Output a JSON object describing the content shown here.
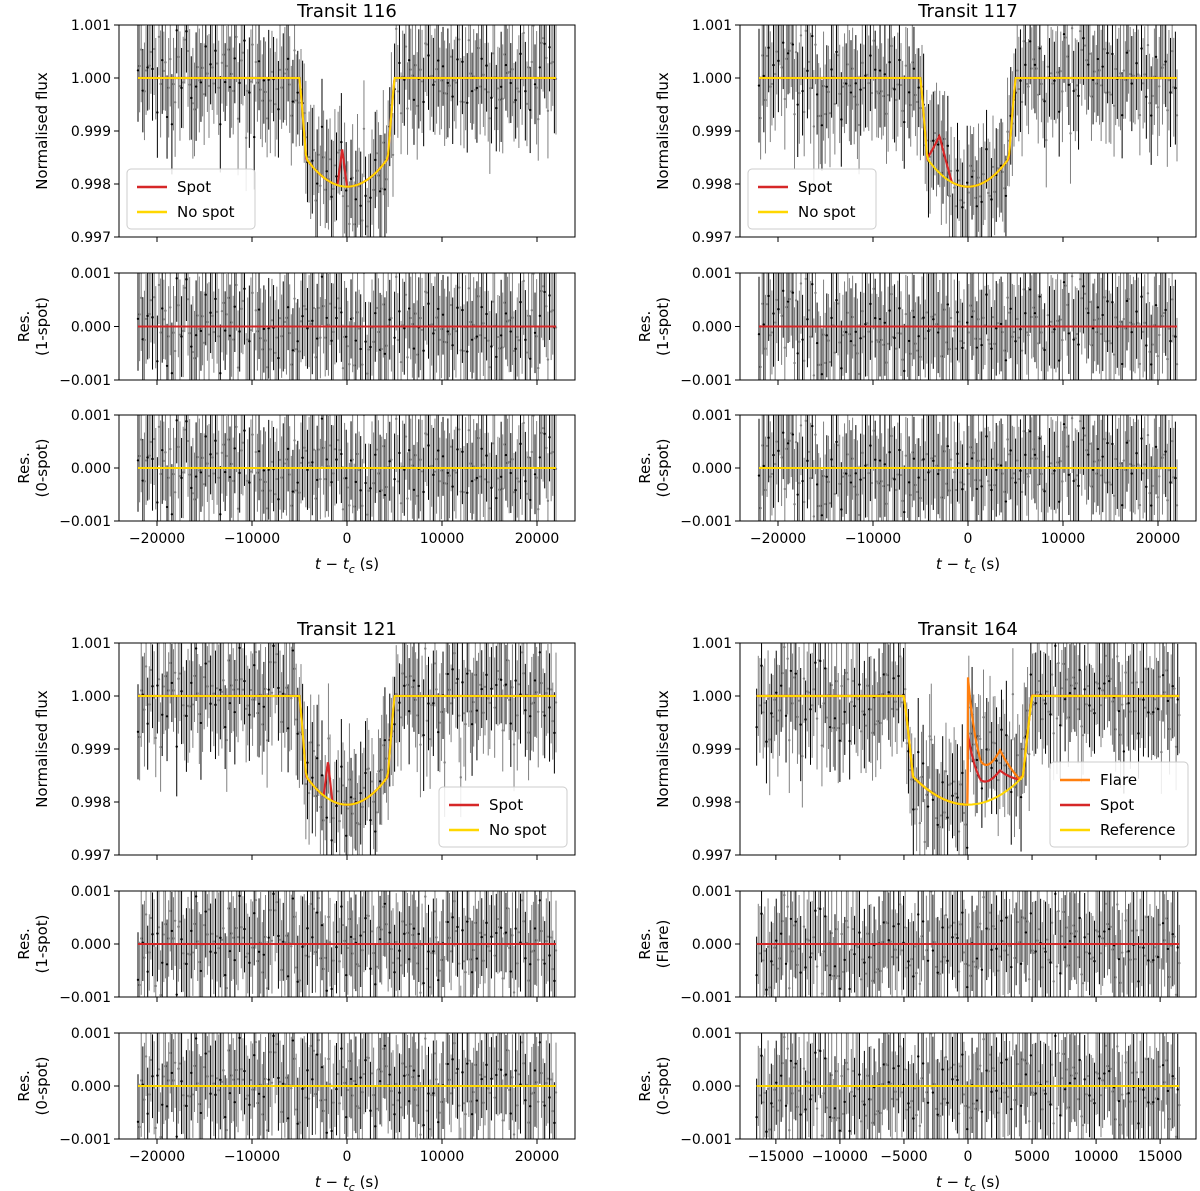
{
  "chart_data": [
    {
      "type": "line",
      "title": "Transit 116",
      "xlabel": "t − t",
      "xlabel_sub": "c",
      "xlabel_unit": " (s)",
      "xlim": [
        -24000,
        24000
      ],
      "xticks": [
        -20000,
        -10000,
        0,
        10000,
        20000
      ],
      "xtick_labels": [
        "−20000",
        "−10000",
        "0",
        "10000",
        "20000"
      ],
      "data_range": [
        -22000,
        22000
      ],
      "transit": {
        "t1": -5000,
        "t4": 5000,
        "depth": 0.00205
      },
      "bump": {
        "type": "spot",
        "t0": -500,
        "width": 500,
        "amp": 0.0007
      },
      "main": {
        "ylabel": "Normalised flux",
        "ylim": [
          0.997,
          1.001
        ],
        "yticks": [
          "0.997",
          "0.998",
          "0.999",
          "1.000",
          "1.001"
        ],
        "noise_sigma": 0.00045
      },
      "res1": {
        "ylabel_line1": "Res.",
        "ylabel_line2": "(1-spot)",
        "ylim": [
          -0.001,
          0.001
        ],
        "yticks": [
          "−0.001",
          "0.000",
          "0.001"
        ]
      },
      "res0": {
        "ylabel_line1": "Res.",
        "ylabel_line2": "(0-spot)",
        "ylim": [
          -0.001,
          0.001
        ],
        "yticks": [
          "−0.001",
          "0.000",
          "0.001"
        ]
      },
      "legend": {
        "position": "lower-left",
        "entries": [
          {
            "label": "Spot",
            "color": "#d62728"
          },
          {
            "label": "No spot",
            "color": "#ffd700"
          }
        ]
      }
    },
    {
      "type": "line",
      "title": "Transit 117",
      "xlabel": "t − t",
      "xlabel_sub": "c",
      "xlabel_unit": " (s)",
      "xlim": [
        -24000,
        24000
      ],
      "xticks": [
        -20000,
        -10000,
        0,
        10000,
        20000
      ],
      "xtick_labels": [
        "−20000",
        "−10000",
        "0",
        "10000",
        "20000"
      ],
      "data_range": [
        -22000,
        22000
      ],
      "transit": {
        "t1": -5000,
        "t4": 5000,
        "depth": 0.00205
      },
      "bump": {
        "type": "spot",
        "t0": -3000,
        "width": 1300,
        "amp": 0.0007
      },
      "main": {
        "ylabel": "Normalised flux",
        "ylim": [
          0.997,
          1.001
        ],
        "yticks": [
          "0.997",
          "0.998",
          "0.999",
          "1.000",
          "1.001"
        ],
        "noise_sigma": 0.00045
      },
      "res1": {
        "ylabel_line1": "Res.",
        "ylabel_line2": "(1-spot)",
        "ylim": [
          -0.001,
          0.001
        ],
        "yticks": [
          "−0.001",
          "0.000",
          "0.001"
        ]
      },
      "res0": {
        "ylabel_line1": "Res.",
        "ylabel_line2": "(0-spot)",
        "ylim": [
          -0.001,
          0.001
        ],
        "yticks": [
          "−0.001",
          "0.000",
          "0.001"
        ]
      },
      "legend": {
        "position": "lower-left",
        "entries": [
          {
            "label": "Spot",
            "color": "#d62728"
          },
          {
            "label": "No spot",
            "color": "#ffd700"
          }
        ]
      }
    },
    {
      "type": "line",
      "title": "Transit 121",
      "xlabel": "t − t",
      "xlabel_sub": "c",
      "xlabel_unit": " (s)",
      "xlim": [
        -24000,
        24000
      ],
      "xticks": [
        -20000,
        -10000,
        0,
        10000,
        20000
      ],
      "xtick_labels": [
        "−20000",
        "−10000",
        "0",
        "10000",
        "20000"
      ],
      "data_range": [
        -22000,
        22000
      ],
      "transit": {
        "t1": -5000,
        "t4": 5000,
        "depth": 0.00205
      },
      "bump": {
        "type": "spot",
        "t0": -2000,
        "width": 450,
        "amp": 0.0007
      },
      "main": {
        "ylabel": "Normalised flux",
        "ylim": [
          0.997,
          1.001
        ],
        "yticks": [
          "0.997",
          "0.998",
          "0.999",
          "1.000",
          "1.001"
        ],
        "noise_sigma": 0.00045
      },
      "res1": {
        "ylabel_line1": "Res.",
        "ylabel_line2": "(1-spot)",
        "ylim": [
          -0.001,
          0.001
        ],
        "yticks": [
          "−0.001",
          "0.000",
          "0.001"
        ]
      },
      "res0": {
        "ylabel_line1": "Res.",
        "ylabel_line2": "(0-spot)",
        "ylim": [
          -0.001,
          0.001
        ],
        "yticks": [
          "−0.001",
          "0.000",
          "0.001"
        ]
      },
      "legend": {
        "position": "lower-right",
        "entries": [
          {
            "label": "Spot",
            "color": "#d62728"
          },
          {
            "label": "No spot",
            "color": "#ffd700"
          }
        ]
      }
    },
    {
      "type": "line",
      "title": "Transit 164",
      "xlabel": "t − t",
      "xlabel_sub": "c",
      "xlabel_unit": " (s)",
      "xlim": [
        -17800,
        17800
      ],
      "xticks": [
        -15000,
        -10000,
        -5000,
        0,
        5000,
        10000,
        15000
      ],
      "xtick_labels": [
        "−15000",
        "−10000",
        "−5000",
        "0",
        "5000",
        "10000",
        "15000"
      ],
      "data_range": [
        -16500,
        16500
      ],
      "transit": {
        "t1": -5000,
        "t4": 5000,
        "depth": 0.00205
      },
      "bump": {
        "type": "flare",
        "t0": 0,
        "amp": 0.0024,
        "decay": 900,
        "spot_t0": 2500,
        "spot_width": 1500,
        "spot_amp": 0.0007
      },
      "main": {
        "ylabel": "Normalised flux",
        "ylim": [
          0.997,
          1.001
        ],
        "yticks": [
          "0.997",
          "0.998",
          "0.999",
          "1.000",
          "1.001"
        ],
        "noise_sigma": 0.00045
      },
      "res1": {
        "ylabel_line1": "Res.",
        "ylabel_line2": "(Flare)",
        "ylim": [
          -0.001,
          0.001
        ],
        "yticks": [
          "−0.001",
          "0.000",
          "0.001"
        ]
      },
      "res0": {
        "ylabel_line1": "Res.",
        "ylabel_line2": "(0-spot)",
        "ylim": [
          -0.001,
          0.001
        ],
        "yticks": [
          "−0.001",
          "0.000",
          "0.001"
        ]
      },
      "legend": {
        "position": "lower-right",
        "entries": [
          {
            "label": "Flare",
            "color": "#ff7f0e"
          },
          {
            "label": "Spot",
            "color": "#d62728"
          },
          {
            "label": "Reference",
            "color": "#ffd700"
          }
        ]
      }
    }
  ]
}
